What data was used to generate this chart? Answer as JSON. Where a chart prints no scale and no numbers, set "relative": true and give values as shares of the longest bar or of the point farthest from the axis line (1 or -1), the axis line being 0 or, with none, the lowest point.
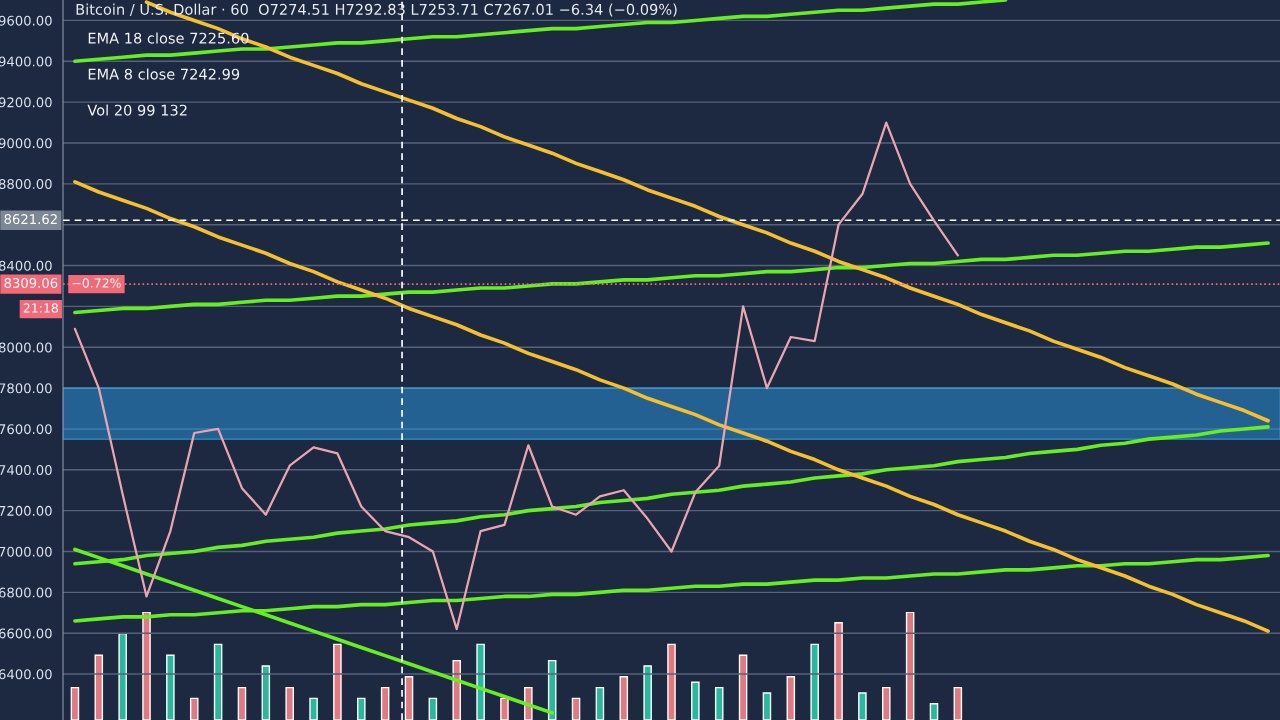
{
  "chart_data": [
    {
      "type": "line",
      "title": "Bitcoin / U.S. Dollar · 60",
      "subtitle": "O7274.51 H7292.83 L7253.71 C7267.01 −6.34 (−0.09%)",
      "annotations": [
        "EMA 18 close 7225.60",
        "EMA 8 close 7242.99",
        "Vol 20 99 132",
        "−0.72%",
        "21:18"
      ],
      "categories": [
        null,
        null,
        null,
        null,
        null,
        null,
        null,
        null,
        null,
        null,
        null,
        null,
        null,
        null,
        null,
        null,
        null,
        null,
        null,
        null,
        null,
        null,
        null,
        null,
        null,
        null,
        null,
        null,
        null,
        null,
        null,
        null,
        null,
        null,
        null,
        null,
        null,
        null,
        null,
        null,
        null,
        null,
        null,
        null,
        null,
        null,
        null,
        null,
        null,
        null,
        null
      ],
      "ylim": [
        6175,
        9700
      ],
      "grid": "y",
      "legend": false,
      "line_style": "solid",
      "marker": "none",
      "yticks": [
        {
          "value": 6400,
          "label": "6400.00"
        },
        {
          "value": 6600,
          "label": "6600.00"
        },
        {
          "value": 6800,
          "label": "6800.00"
        },
        {
          "value": 7000,
          "label": "7000.00"
        },
        {
          "value": 7200,
          "label": "7200.00"
        },
        {
          "value": 7400,
          "label": "7400.00"
        },
        {
          "value": 7600,
          "label": "7600.00"
        },
        {
          "value": 7800,
          "label": "7800.00"
        },
        {
          "value": 8000,
          "label": "8000.00"
        },
        {
          "value": 8200,
          "label": null
        },
        {
          "value": 8400,
          "label": "8400.00"
        },
        {
          "value": 8600,
          "label": null
        },
        {
          "value": 8800,
          "label": "8800.00"
        },
        {
          "value": 9000,
          "label": "9000.00"
        },
        {
          "value": 9200,
          "label": "9200.00"
        },
        {
          "value": 9400,
          "label": "9400.00"
        },
        {
          "value": 9600,
          "label": "9600.00"
        }
      ],
      "ref_lines": [
        {
          "axis": "y",
          "value": 8621.62,
          "label": "8621.62",
          "color": "#ffffff",
          "line_style": "dashed"
        },
        {
          "axis": "y",
          "value": 8309.06,
          "label": "8309.06",
          "color": "#f06a78",
          "line_style": "dotted"
        }
      ],
      "bands": [
        {
          "axis": "y",
          "from": 7550,
          "to": 7800,
          "color": "#2a90d8"
        }
      ],
      "series": [
        {
          "color": "#66ee22",
          "values": [
            9400,
            9410,
            9420,
            9430,
            9430,
            9440,
            9450,
            9460,
            9460,
            9470,
            9480,
            9490,
            9490,
            9500,
            9510,
            9520,
            9520,
            9530,
            9540,
            9550,
            9560,
            9560,
            9570,
            9580,
            9590,
            9590,
            9600,
            9610,
            9620,
            9620,
            9630,
            9640,
            9650,
            9650,
            9660,
            9670,
            9680,
            9680,
            9690,
            9700,
            null,
            null,
            null,
            null,
            null,
            null,
            null,
            null,
            null,
            null,
            null
          ]
        },
        {
          "color": "#66ee22",
          "values": [
            8170,
            8180,
            8190,
            8190,
            8200,
            8210,
            8210,
            8220,
            8230,
            8230,
            8240,
            8250,
            8250,
            8260,
            8270,
            8270,
            8280,
            8290,
            8290,
            8300,
            8310,
            8310,
            8320,
            8330,
            8330,
            8340,
            8350,
            8350,
            8360,
            8370,
            8370,
            8380,
            8390,
            8390,
            8400,
            8410,
            8410,
            8420,
            8430,
            8430,
            8440,
            8450,
            8450,
            8460,
            8470,
            8470,
            8480,
            8490,
            8490,
            8500,
            8510
          ]
        },
        {
          "color": "#66ee22",
          "values": [
            6940,
            6950,
            6960,
            6980,
            6990,
            7000,
            7020,
            7030,
            7050,
            7060,
            7070,
            7090,
            7100,
            7110,
            7130,
            7140,
            7150,
            7170,
            7180,
            7200,
            7210,
            7220,
            7240,
            7250,
            7260,
            7280,
            7290,
            7300,
            7320,
            7330,
            7340,
            7360,
            7370,
            7380,
            7400,
            7410,
            7420,
            7440,
            7450,
            7460,
            7480,
            7490,
            7500,
            7520,
            7530,
            7550,
            7560,
            7570,
            7590,
            7600,
            7610
          ]
        },
        {
          "color": "#66ee22",
          "values": [
            6660,
            6670,
            6680,
            6680,
            6690,
            6690,
            6700,
            6710,
            6710,
            6720,
            6730,
            6730,
            6740,
            6740,
            6750,
            6760,
            6760,
            6770,
            6780,
            6780,
            6790,
            6790,
            6800,
            6810,
            6810,
            6820,
            6830,
            6830,
            6840,
            6840,
            6850,
            6860,
            6860,
            6870,
            6870,
            6880,
            6890,
            6890,
            6900,
            6910,
            6910,
            6920,
            6930,
            6930,
            6940,
            6940,
            6950,
            6960,
            6960,
            6970,
            6980
          ]
        },
        {
          "color": "#66ee22",
          "values": [
            7010,
            6970,
            6930,
            6890,
            6850,
            6810,
            6770,
            6730,
            6690,
            6650,
            6610,
            6570,
            6530,
            6490,
            6450,
            6410,
            6370,
            6330,
            6290,
            6250,
            6210,
            null,
            null,
            null,
            null,
            null,
            null,
            null,
            null,
            null,
            null,
            null,
            null,
            null,
            null,
            null,
            null,
            null,
            null,
            null,
            null,
            null,
            null,
            null,
            null,
            null,
            null,
            null,
            null,
            null,
            null
          ]
        },
        {
          "color": "#f5c030",
          "values": [
            null,
            null,
            null,
            9690,
            9640,
            9600,
            9560,
            9510,
            9470,
            9420,
            9380,
            9340,
            9290,
            9250,
            9210,
            9170,
            9120,
            9080,
            9030,
            8990,
            8950,
            8900,
            8860,
            8820,
            8770,
            8730,
            8690,
            8640,
            8600,
            8560,
            8510,
            8470,
            8420,
            8380,
            8340,
            8290,
            8250,
            8210,
            8160,
            8120,
            8080,
            8030,
            7990,
            7950,
            7900,
            7860,
            7820,
            7770,
            7730,
            7690,
            7640
          ]
        },
        {
          "color": "#f5c030",
          "values": [
            8810,
            8760,
            8720,
            8680,
            8630,
            8590,
            8540,
            8500,
            8460,
            8410,
            8370,
            8320,
            8280,
            8240,
            8190,
            8150,
            8110,
            8060,
            8020,
            7970,
            7930,
            7890,
            7840,
            7800,
            7750,
            7710,
            7670,
            7620,
            7580,
            7540,
            7490,
            7450,
            7400,
            7360,
            7320,
            7270,
            7230,
            7180,
            7140,
            7100,
            7050,
            7010,
            6960,
            6920,
            6880,
            6830,
            6790,
            6740,
            6700,
            6660,
            6610
          ]
        },
        {
          "color": "#eaa6b0",
          "values": [
            8090,
            7800,
            7280,
            6780,
            7100,
            7580,
            7600,
            7310,
            7180,
            7420,
            7510,
            7480,
            7220,
            7100,
            7070,
            7000,
            6620,
            7100,
            7130,
            7520,
            7220,
            7180,
            7270,
            7300,
            7160,
            7000,
            7290,
            7420,
            8200,
            7800,
            8050,
            8030,
            8600,
            8750,
            9100,
            8800,
            8620,
            8450,
            null,
            null,
            null,
            null,
            null,
            null,
            null,
            null,
            null,
            null,
            null,
            null,
            null
          ]
        }
      ]
    },
    {
      "type": "bar",
      "relative": true,
      "categories": [
        null,
        null,
        null,
        null,
        null,
        null,
        null,
        null,
        null,
        null,
        null,
        null,
        null,
        null,
        null,
        null,
        null,
        null,
        null,
        null,
        null,
        null,
        null,
        null,
        null,
        null,
        null,
        null,
        null,
        null,
        null,
        null,
        null,
        null,
        null,
        null,
        null,
        null
      ],
      "values": [
        0.3,
        0.6,
        0.8,
        1,
        0.6,
        0.2,
        0.7,
        0.3,
        0.5,
        0.3,
        0.2,
        0.7,
        0.2,
        0.3,
        0.4,
        0.2,
        0.55,
        0.7,
        0.2,
        0.3,
        0.55,
        0.2,
        0.3,
        0.4,
        0.5,
        0.7,
        0.35,
        0.3,
        0.6,
        0.25,
        0.4,
        0.7,
        0.9,
        0.25,
        0.3,
        1,
        0.15,
        0.3
      ],
      "colors": [
        "#e07a80",
        "#e07a80",
        "#2ab7a0",
        "#e07a80",
        "#2ab7a0",
        "#e07a80",
        "#2ab7a0",
        "#e07a80",
        "#2ab7a0",
        "#e07a80",
        "#2ab7a0",
        "#e07a80",
        "#2ab7a0",
        "#e07a80",
        "#e07a80",
        "#2ab7a0",
        "#e07a80",
        "#2ab7a0",
        "#e07a80",
        "#e07a80",
        "#2ab7a0",
        "#e07a80",
        "#2ab7a0",
        "#e07a80",
        "#2ab7a0",
        "#e07a80",
        "#2ab7a0",
        "#2ab7a0",
        "#e07a80",
        "#2ab7a0",
        "#e07a80",
        "#2ab7a0",
        "#e07a80",
        "#2ab7a0",
        "#e07a80",
        "#e07a80",
        "#2ab7a0",
        "#e07a80"
      ]
    }
  ]
}
